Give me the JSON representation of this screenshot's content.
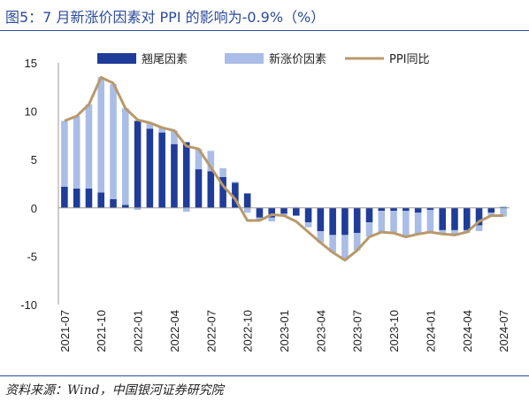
{
  "title": "图5：7 月新涨价因素对 PPI 的影响为-0.9%（%）",
  "source": "资料来源：Wind，中国银河证券研究院",
  "chart_data": {
    "type": "bar",
    "stacked": true,
    "categories": [
      "2021-07",
      "2021-08",
      "2021-09",
      "2021-10",
      "2021-11",
      "2021-12",
      "2022-01",
      "2022-02",
      "2022-03",
      "2022-04",
      "2022-05",
      "2022-06",
      "2022-07",
      "2022-08",
      "2022-09",
      "2022-10",
      "2022-11",
      "2022-12",
      "2023-01",
      "2023-02",
      "2023-03",
      "2023-04",
      "2023-05",
      "2023-06",
      "2023-07",
      "2023-08",
      "2023-09",
      "2023-10",
      "2023-11",
      "2023-12",
      "2024-01",
      "2024-02",
      "2024-03",
      "2024-04",
      "2024-05",
      "2024-06",
      "2024-07"
    ],
    "x_tick_labels": [
      "2021-07",
      "2021-10",
      "2022-01",
      "2022-04",
      "2022-07",
      "2022-10",
      "2023-01",
      "2023-04",
      "2023-07",
      "2023-10",
      "2024-01",
      "2024-04",
      "2024-07"
    ],
    "ylim": [
      -10,
      15
    ],
    "y_ticks": [
      15,
      10,
      5,
      0,
      -5,
      -10
    ],
    "legend": [
      "翘尾因素",
      "新涨价因素",
      "PPI同比"
    ],
    "legend_position": "top",
    "colors": {
      "carryover": "#1f3c99",
      "new": "#a9bde6",
      "line": "#b8996b"
    },
    "series": [
      {
        "name": "翘尾因素",
        "kind": "bar",
        "values": [
          2.2,
          2.0,
          2.0,
          1.6,
          0.9,
          0.3,
          9.0,
          8.2,
          7.8,
          6.6,
          6.8,
          4.0,
          3.8,
          3.2,
          2.6,
          1.5,
          -1.0,
          -1.0,
          -0.6,
          -0.8,
          -1.5,
          -2.4,
          -2.8,
          -2.8,
          -2.6,
          -1.5,
          -0.3,
          -0.3,
          -0.3,
          -0.5,
          -0.2,
          -2.3,
          -2.3,
          -2.3,
          -1.8,
          -0.5,
          0.1
        ]
      },
      {
        "name": "新涨价因素",
        "kind": "bar",
        "values": [
          6.8,
          7.5,
          8.7,
          11.9,
          11.9,
          10.0,
          -0.2,
          0.6,
          0.5,
          1.4,
          -0.4,
          2.1,
          2.1,
          0.9,
          0.1,
          -0.5,
          -0.3,
          -0.4,
          -0.2,
          0.1,
          -0.5,
          -1.2,
          -1.8,
          -2.6,
          -1.8,
          -1.5,
          -2.2,
          -2.3,
          -2.7,
          -2.2,
          -2.3,
          -0.4,
          -0.5,
          -0.3,
          -0.6,
          -0.3,
          -0.9
        ]
      },
      {
        "name": "PPI同比",
        "kind": "line",
        "values": [
          9.0,
          9.5,
          10.7,
          13.5,
          12.9,
          10.3,
          9.1,
          8.8,
          8.3,
          8.0,
          6.4,
          6.1,
          4.2,
          2.3,
          0.9,
          -1.3,
          -1.3,
          -0.7,
          -0.8,
          -1.4,
          -2.5,
          -3.6,
          -4.6,
          -5.4,
          -4.4,
          -3.0,
          -2.5,
          -2.6,
          -3.0,
          -2.7,
          -2.5,
          -2.7,
          -2.8,
          -2.5,
          -1.4,
          -0.8,
          -0.8
        ]
      }
    ]
  }
}
